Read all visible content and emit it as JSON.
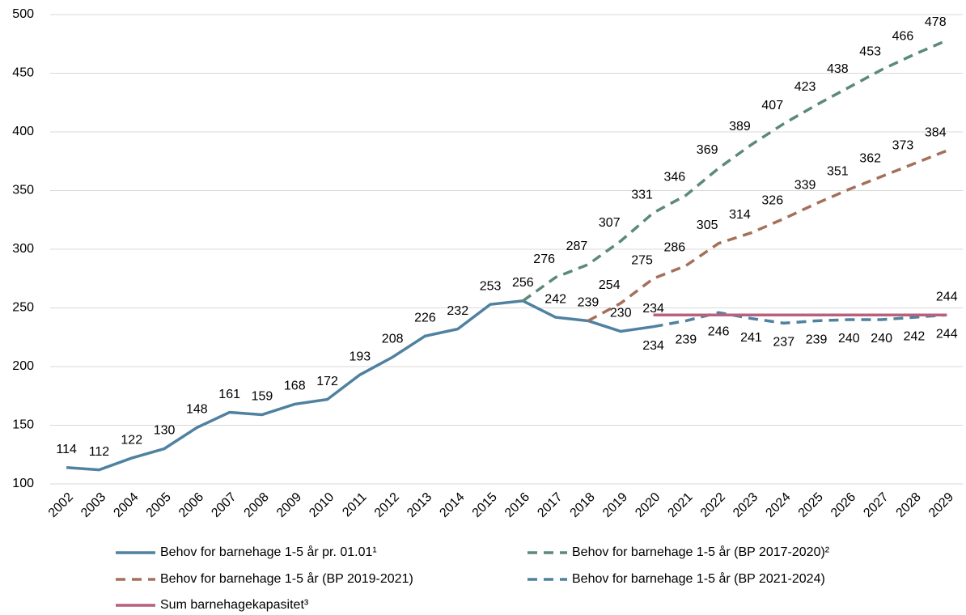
{
  "chart_data": {
    "type": "line",
    "categories": [
      "2002",
      "2003",
      "2004",
      "2005",
      "2006",
      "2007",
      "2008",
      "2009",
      "2010",
      "2011",
      "2012",
      "2013",
      "2014",
      "2015",
      "2016",
      "2017",
      "2018",
      "2019",
      "2020",
      "2021",
      "2022",
      "2023",
      "2024",
      "2025",
      "2026",
      "2027",
      "2028",
      "2029"
    ],
    "ylim": [
      100,
      500
    ],
    "yticks": [
      100,
      150,
      200,
      250,
      300,
      350,
      400,
      450,
      500
    ],
    "grid": true,
    "series": [
      {
        "name": "Behov for barnehage 1-5 år pr. 01.01¹",
        "color": "#4f81a0",
        "dashed": false,
        "values": [
          114,
          112,
          122,
          130,
          148,
          161,
          159,
          168,
          172,
          193,
          208,
          226,
          232,
          253,
          256,
          242,
          239,
          230,
          234,
          null,
          null,
          null,
          null,
          null,
          null,
          null,
          null,
          null
        ]
      },
      {
        "name": "Behov for barnehage 1-5 år (BP 2017-2020)²",
        "color": "#5b8a78",
        "dashed": true,
        "values": [
          null,
          null,
          null,
          null,
          null,
          null,
          null,
          null,
          null,
          null,
          null,
          null,
          null,
          null,
          256,
          276,
          287,
          307,
          331,
          346,
          369,
          389,
          407,
          423,
          438,
          453,
          466,
          478
        ],
        "value_labels": [
          null,
          null,
          null,
          null,
          null,
          null,
          null,
          null,
          null,
          null,
          null,
          null,
          null,
          null,
          null,
          "276",
          "287",
          "307",
          "331",
          "346",
          "369",
          "389",
          "407",
          "423",
          "438",
          "453",
          "466",
          "478"
        ]
      },
      {
        "name": "Behov for barnehage 1-5 år (BP 2019-2021)",
        "color": "#a5705a",
        "dashed": true,
        "values": [
          null,
          null,
          null,
          null,
          null,
          null,
          null,
          null,
          null,
          null,
          null,
          null,
          null,
          null,
          null,
          null,
          239,
          254,
          275,
          286,
          305,
          314,
          326,
          339,
          351,
          362,
          373,
          384
        ],
        "value_labels": [
          null,
          null,
          null,
          null,
          null,
          null,
          null,
          null,
          null,
          null,
          null,
          null,
          null,
          null,
          null,
          null,
          null,
          "254",
          "275",
          "286",
          "305",
          "314",
          "326",
          "339",
          "351",
          "362",
          "373",
          "384"
        ]
      },
      {
        "name": "Behov for barnehage 1-5 år (BP 2021-2024)",
        "color": "#4f81a0",
        "dashed": true,
        "values": [
          null,
          null,
          null,
          null,
          null,
          null,
          null,
          null,
          null,
          null,
          null,
          null,
          null,
          null,
          null,
          null,
          null,
          null,
          234,
          239,
          246,
          241,
          237,
          239,
          240,
          240,
          242,
          244
        ]
      },
      {
        "name": "Sum barnehagekapasitet³",
        "color": "#b9607f",
        "dashed": false,
        "values": [
          null,
          null,
          null,
          null,
          null,
          null,
          null,
          null,
          null,
          null,
          null,
          null,
          null,
          null,
          null,
          null,
          null,
          null,
          244,
          244,
          244,
          244,
          244,
          244,
          244,
          244,
          244,
          244
        ],
        "value_labels": [
          null,
          null,
          null,
          null,
          null,
          null,
          null,
          null,
          null,
          null,
          null,
          null,
          null,
          null,
          null,
          null,
          null,
          null,
          null,
          null,
          null,
          null,
          null,
          null,
          null,
          null,
          null,
          "244"
        ]
      }
    ]
  }
}
